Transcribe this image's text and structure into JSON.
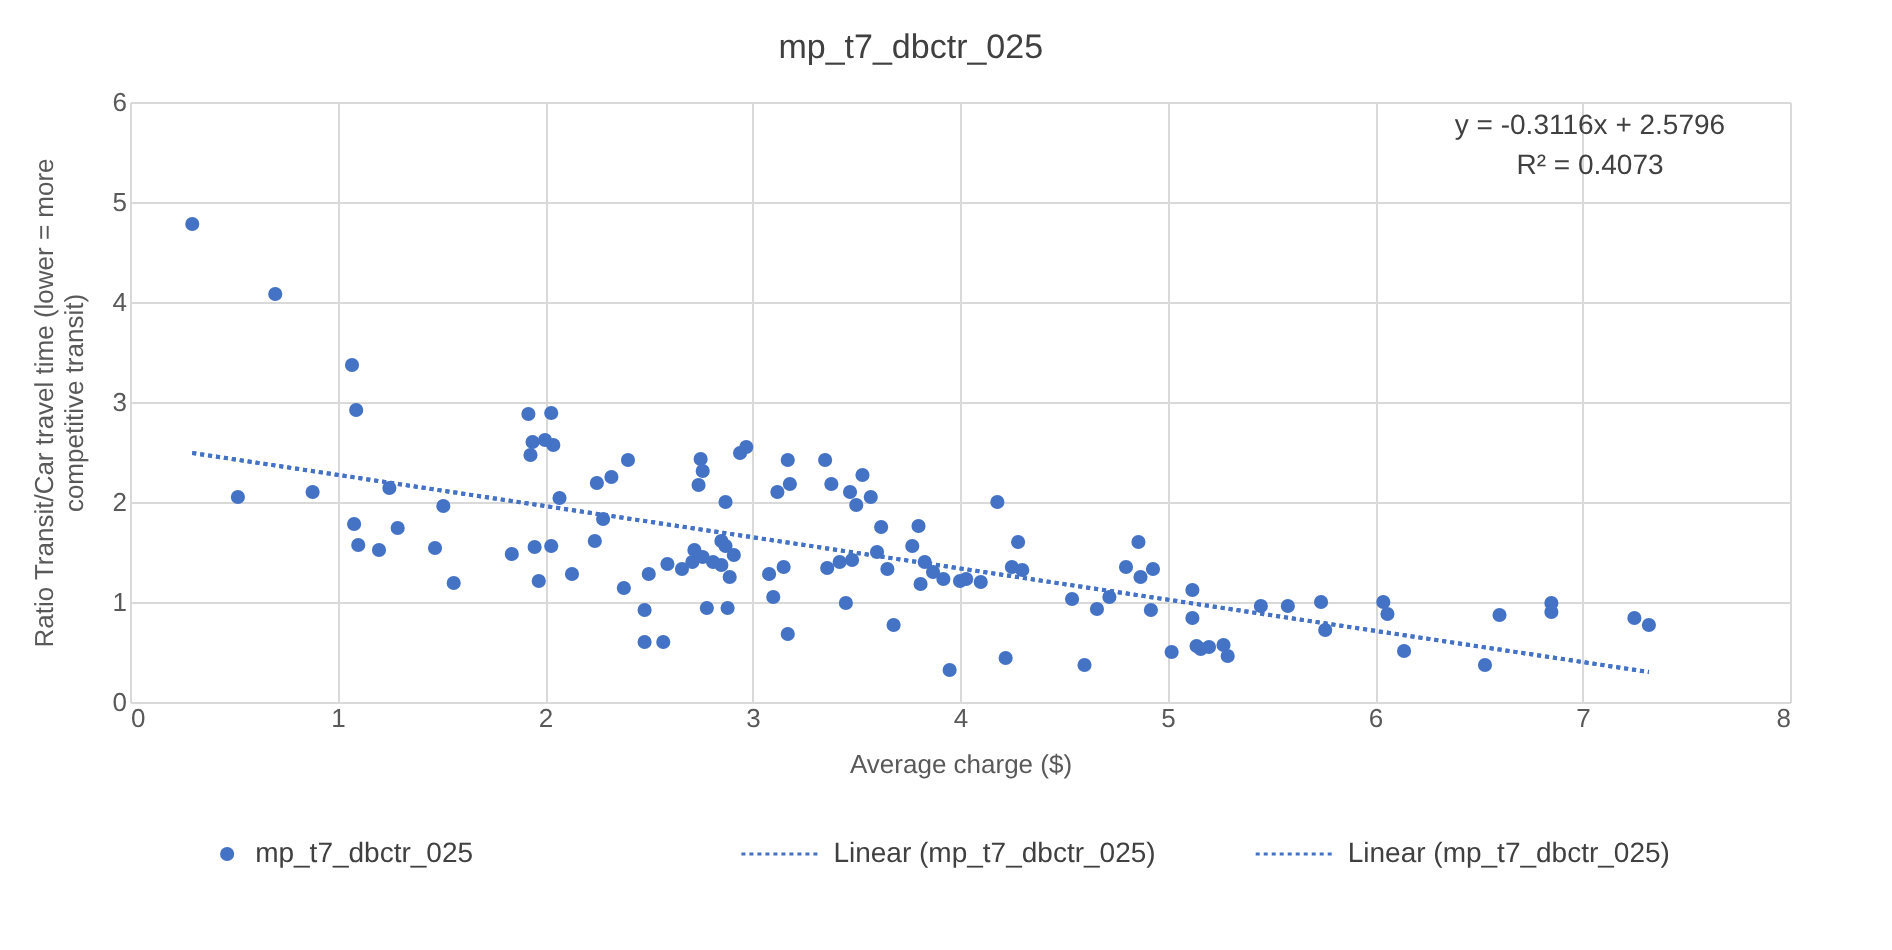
{
  "chart_data": {
    "type": "scatter",
    "title": "mp_t7_dbctr_025",
    "xlabel": "Average charge ($)",
    "ylabel": "Ratio Transit/Car travel time (lower = more competitive transit)",
    "xlim": [
      0,
      8
    ],
    "xticks": [
      0,
      1,
      2,
      3,
      4,
      5,
      6,
      7,
      8
    ],
    "ylim": [
      0,
      6
    ],
    "yticks": [
      0,
      1,
      2,
      3,
      4,
      5,
      6
    ],
    "grid": true,
    "legend": "bottom",
    "marker": "circle",
    "annotations": [
      "y = -0.3116x + 2.5796",
      "R² = 0.4073"
    ],
    "series": [
      {
        "name": "mp_t7_dbctr_025",
        "color": "#4472c4",
        "x": [
          0.3,
          0.52,
          0.7,
          0.88,
          1.07,
          1.09,
          1.08,
          1.1,
          1.2,
          1.25,
          1.29,
          1.47,
          1.51,
          1.56,
          1.84,
          1.92,
          1.93,
          1.94,
          1.95,
          1.97,
          2.0,
          2.03,
          2.04,
          2.03,
          2.07,
          2.13,
          2.24,
          2.25,
          2.28,
          2.32,
          2.4,
          2.38,
          2.48,
          2.48,
          2.5,
          2.57,
          2.59,
          2.66,
          2.71,
          2.72,
          2.75,
          2.76,
          2.74,
          2.76,
          2.78,
          2.81,
          2.85,
          2.85,
          2.87,
          2.87,
          2.88,
          2.89,
          2.91,
          2.94,
          2.97,
          3.08,
          3.1,
          3.12,
          3.15,
          3.17,
          3.18,
          3.17,
          3.35,
          3.36,
          3.38,
          3.42,
          3.45,
          3.47,
          3.48,
          3.5,
          3.53,
          3.57,
          3.6,
          3.62,
          3.65,
          3.68,
          3.77,
          3.8,
          3.81,
          3.83,
          3.87,
          3.92,
          3.95,
          4.0,
          4.03,
          4.1,
          4.18,
          4.22,
          4.25,
          4.28,
          4.3,
          4.54,
          4.6,
          4.66,
          4.72,
          4.8,
          4.86,
          4.87,
          4.93,
          4.92,
          5.02,
          5.12,
          5.12,
          5.14,
          5.16,
          5.2,
          5.27,
          5.29,
          5.45,
          5.58,
          5.74,
          5.76,
          6.04,
          6.06,
          6.14,
          6.53,
          6.6,
          6.85,
          6.85,
          7.25,
          7.32
        ],
        "values": [
          4.78,
          2.05,
          4.08,
          2.1,
          3.37,
          2.92,
          1.78,
          1.57,
          1.52,
          2.14,
          1.74,
          1.54,
          1.96,
          1.19,
          1.48,
          2.88,
          2.47,
          2.6,
          1.55,
          1.21,
          2.62,
          2.89,
          2.57,
          1.56,
          2.04,
          1.28,
          1.61,
          2.19,
          1.83,
          2.25,
          2.42,
          1.14,
          0.6,
          0.92,
          1.28,
          0.6,
          1.38,
          1.33,
          1.4,
          1.52,
          2.43,
          2.31,
          2.17,
          1.45,
          0.94,
          1.4,
          1.37,
          1.61,
          2.0,
          1.56,
          0.94,
          1.25,
          1.47,
          2.49,
          2.55,
          1.28,
          1.05,
          2.1,
          1.35,
          2.42,
          2.18,
          0.68,
          2.42,
          1.34,
          2.18,
          1.4,
          0.99,
          2.1,
          1.42,
          1.97,
          2.27,
          2.05,
          1.5,
          1.75,
          1.33,
          0.77,
          1.56,
          1.76,
          1.18,
          1.4,
          1.3,
          1.23,
          0.32,
          1.21,
          1.23,
          1.2,
          2.0,
          0.44,
          1.35,
          1.6,
          1.32,
          1.03,
          0.37,
          0.93,
          1.05,
          1.35,
          1.6,
          1.25,
          1.33,
          0.92,
          0.5,
          1.12,
          0.84,
          0.56,
          0.53,
          0.55,
          0.57,
          0.46,
          0.96,
          0.96,
          1.0,
          0.72,
          1.0,
          0.88,
          0.51,
          0.37,
          0.87,
          0.99,
          0.9,
          0.84,
          0.77
        ]
      },
      {
        "name": "Linear (mp_t7_dbctr_025)",
        "type": "line",
        "line_style": "dotted",
        "marker": "none",
        "color": "#4472c4",
        "x": [
          0.3,
          7.32
        ],
        "values": [
          2.49,
          0.3
        ]
      },
      {
        "name": "Linear (mp_t7_dbctr_025)",
        "type": "line",
        "line_style": "dotted",
        "marker": "none",
        "color": "#4472c4",
        "x": [
          0.3,
          7.32
        ],
        "values": [
          2.49,
          0.3
        ]
      }
    ]
  }
}
